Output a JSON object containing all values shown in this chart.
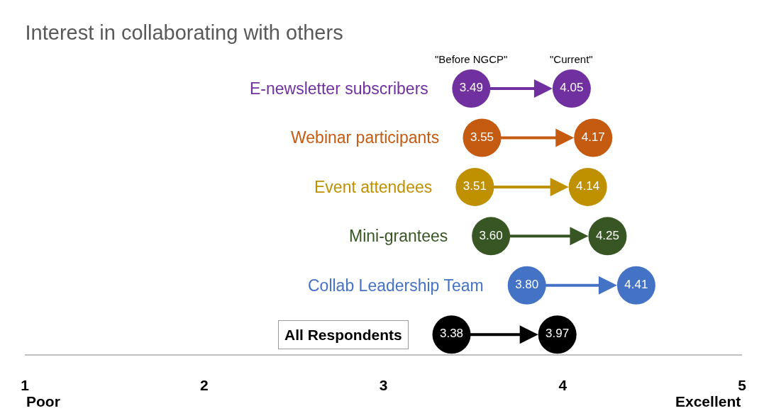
{
  "chart_data": {
    "type": "scatter",
    "orientation": "horizontal",
    "title": "Interest in collaborating with others",
    "categories": [
      "E-newsletter subscribers",
      "Webinar participants",
      "Event attendees",
      "Mini-grantees",
      "Collab Leadership Team",
      "All Respondents"
    ],
    "series": [
      {
        "name": "\"Before NGCP\"",
        "values": [
          3.49,
          3.55,
          3.51,
          3.6,
          3.8,
          3.38
        ],
        "value_labels": [
          "3.49",
          "3.55",
          "3.51",
          "3.60",
          "3.80",
          "3.38"
        ],
        "colors": [
          "#7030a0",
          "#c55a11",
          "#bf9000",
          "#375623",
          "#4472c4",
          "#000000"
        ]
      },
      {
        "name": "\"Current\"",
        "values": [
          4.05,
          4.17,
          4.14,
          4.25,
          4.41,
          3.97
        ],
        "value_labels": [
          "4.05",
          "4.17",
          "4.14",
          "4.25",
          "4.41",
          "3.97"
        ],
        "colors": [
          "#7030a0",
          "#c55a11",
          "#bf9000",
          "#375623",
          "#4472c4",
          "#000000"
        ]
      }
    ],
    "xlim": [
      1,
      5
    ],
    "xticks": [
      1,
      2,
      3,
      4,
      5
    ],
    "tick_labels": "x",
    "marker": "circle",
    "annotations": [
      "Poor",
      "Excellent"
    ]
  }
}
